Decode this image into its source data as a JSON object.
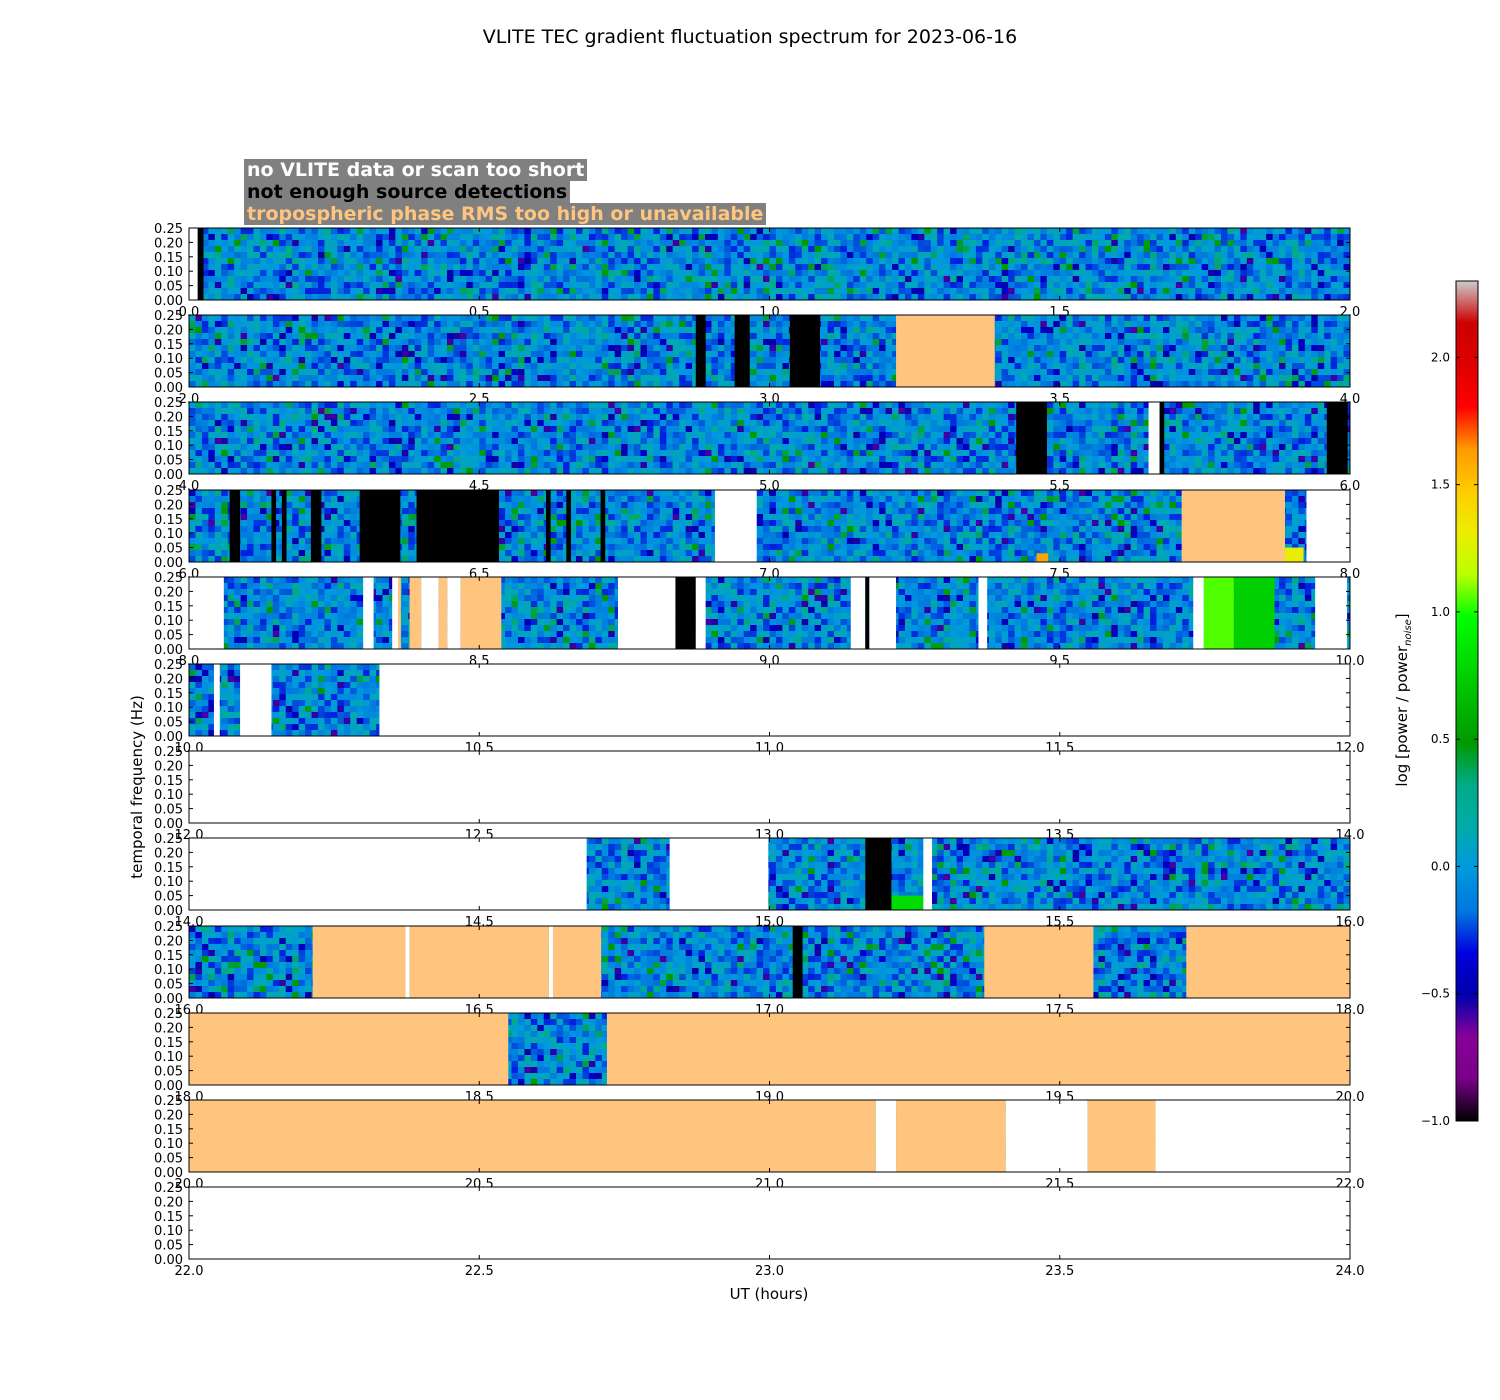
{
  "colors": {
    "no_data": "#ffffff",
    "few_detections": "#000000",
    "tropo": "#ffc57f",
    "legend_bg": "#808080",
    "legend_text_1": "#ffffff",
    "legend_text_2": "#000000",
    "legend_text_3": "#ffc57f"
  },
  "chart_data": {
    "type": "heatmap",
    "title": "VLITE TEC gradient fluctuation spectrum for 2023-06-16",
    "xlabel": "UT (hours)",
    "ylabel": "temporal frequency (Hz)",
    "colorbar": {
      "label_main": "log [power / power",
      "label_sub": "noise",
      "label_end": "]",
      "range": [
        -1.0,
        2.3
      ],
      "ticks": [
        "−1.0",
        "−0.5",
        "0.0",
        "0.5",
        "1.0",
        "1.5",
        "2.0"
      ],
      "tick_values": [
        -1.0,
        -0.5,
        0.0,
        0.5,
        1.0,
        1.5,
        2.0
      ],
      "colormap": "nipy_spectral"
    },
    "legend": [
      {
        "label": "no VLITE data or scan too short",
        "color": "#ffffff"
      },
      {
        "label": "not enough source detections",
        "color": "#000000"
      },
      {
        "label": "tropospheric phase RMS too high or unavailable",
        "color": "#ffc57f"
      }
    ],
    "y_range": [
      0,
      0.25
    ],
    "y_ticks": [
      "0.00",
      "0.05",
      "0.10",
      "0.15",
      "0.20",
      "0.25"
    ],
    "y_tick_values": [
      0,
      0.05,
      0.1,
      0.15,
      0.2,
      0.25
    ],
    "rows": [
      {
        "x_range": [
          0,
          2
        ],
        "x_ticks": [
          "0.0",
          "0.5",
          "1.0",
          "1.5",
          "2.0"
        ],
        "segments": [
          {
            "start": 0.0,
            "end": 0.015,
            "type": "nodata"
          },
          {
            "start": 0.015,
            "end": 0.025,
            "type": "few"
          }
        ]
      },
      {
        "x_range": [
          2,
          4
        ],
        "x_ticks": [
          "2.0",
          "2.5",
          "3.0",
          "3.5",
          "4.0"
        ],
        "segments": [
          {
            "start": 2.873,
            "end": 2.89,
            "type": "few"
          },
          {
            "start": 2.94,
            "end": 2.966,
            "type": "few"
          },
          {
            "start": 3.035,
            "end": 3.087,
            "type": "few"
          },
          {
            "start": 3.218,
            "end": 3.388,
            "type": "tropo"
          }
        ]
      },
      {
        "x_range": [
          4,
          6
        ],
        "x_ticks": [
          "4.0",
          "4.5",
          "5.0",
          "5.5",
          "6.0"
        ],
        "segments": [
          {
            "start": 5.425,
            "end": 5.478,
            "type": "few"
          },
          {
            "start": 5.653,
            "end": 5.672,
            "type": "nodata"
          },
          {
            "start": 5.672,
            "end": 5.68,
            "type": "few"
          },
          {
            "start": 5.96,
            "end": 5.996,
            "type": "few"
          }
        ]
      },
      {
        "x_range": [
          6,
          8
        ],
        "x_ticks": [
          "6.0",
          "6.5",
          "7.0",
          "7.5",
          "8.0"
        ],
        "segments": [
          {
            "start": 6.07,
            "end": 6.088,
            "type": "few"
          },
          {
            "start": 6.142,
            "end": 6.15,
            "type": "few"
          },
          {
            "start": 6.16,
            "end": 6.168,
            "type": "few"
          },
          {
            "start": 6.21,
            "end": 6.228,
            "type": "few"
          },
          {
            "start": 6.294,
            "end": 6.364,
            "type": "few"
          },
          {
            "start": 6.392,
            "end": 6.534,
            "type": "few"
          },
          {
            "start": 6.615,
            "end": 6.623,
            "type": "few"
          },
          {
            "start": 6.65,
            "end": 6.658,
            "type": "few"
          },
          {
            "start": 6.709,
            "end": 6.717,
            "type": "few"
          },
          {
            "start": 6.906,
            "end": 6.978,
            "type": "nodata"
          },
          {
            "start": 7.71,
            "end": 7.888,
            "type": "tropo"
          },
          {
            "start": 7.925,
            "end": 8.0,
            "type": "nodata"
          }
        ]
      },
      {
        "x_range": [
          8,
          10
        ],
        "x_ticks": [
          "8.0",
          "8.5",
          "9.0",
          "9.5",
          "10.0"
        ],
        "segments": [
          {
            "start": 8.0,
            "end": 8.06,
            "type": "nodata"
          },
          {
            "start": 8.3,
            "end": 8.318,
            "type": "nodata"
          },
          {
            "start": 8.35,
            "end": 8.36,
            "type": "nodata"
          },
          {
            "start": 8.36,
            "end": 8.365,
            "type": "tropo"
          },
          {
            "start": 8.38,
            "end": 8.4,
            "type": "tropo"
          },
          {
            "start": 8.4,
            "end": 8.43,
            "type": "nodata"
          },
          {
            "start": 8.43,
            "end": 8.445,
            "type": "tropo"
          },
          {
            "start": 8.445,
            "end": 8.468,
            "type": "nodata"
          },
          {
            "start": 8.468,
            "end": 8.538,
            "type": "tropo"
          },
          {
            "start": 8.739,
            "end": 8.838,
            "type": "nodata"
          },
          {
            "start": 8.838,
            "end": 8.873,
            "type": "few"
          },
          {
            "start": 8.873,
            "end": 8.89,
            "type": "nodata"
          },
          {
            "start": 9.14,
            "end": 9.165,
            "type": "nodata"
          },
          {
            "start": 9.165,
            "end": 9.172,
            "type": "few"
          },
          {
            "start": 9.172,
            "end": 9.218,
            "type": "nodata"
          },
          {
            "start": 9.36,
            "end": 9.375,
            "type": "nodata"
          },
          {
            "start": 9.73,
            "end": 9.748,
            "type": "nodata"
          },
          {
            "start": 9.94,
            "end": 9.995,
            "type": "nodata"
          }
        ]
      },
      {
        "x_range": [
          10,
          12
        ],
        "x_ticks": [
          "10.0",
          "10.5",
          "11.0",
          "11.5",
          "12.0"
        ],
        "segments": [
          {
            "start": 10.043,
            "end": 10.053,
            "type": "nodata"
          },
          {
            "start": 10.088,
            "end": 10.142,
            "type": "nodata"
          },
          {
            "start": 10.328,
            "end": 12.0,
            "type": "nodata"
          }
        ]
      },
      {
        "x_range": [
          12,
          14
        ],
        "x_ticks": [
          "12.0",
          "12.5",
          "13.0",
          "13.5",
          "14.0"
        ],
        "segments": [
          {
            "start": 12.0,
            "end": 14.0,
            "type": "nodata"
          }
        ]
      },
      {
        "x_range": [
          14,
          16
        ],
        "x_ticks": [
          "14.0",
          "14.5",
          "15.0",
          "15.5",
          "16.0"
        ],
        "segments": [
          {
            "start": 14.0,
            "end": 14.685,
            "type": "nodata"
          },
          {
            "start": 14.828,
            "end": 14.998,
            "type": "nodata"
          },
          {
            "start": 15.165,
            "end": 15.21,
            "type": "few"
          },
          {
            "start": 15.265,
            "end": 15.28,
            "type": "nodata"
          }
        ]
      },
      {
        "x_range": [
          16,
          18
        ],
        "x_ticks": [
          "16.0",
          "16.5",
          "17.0",
          "17.5",
          "18.0"
        ],
        "segments": [
          {
            "start": 16.213,
            "end": 16.373,
            "type": "tropo"
          },
          {
            "start": 16.373,
            "end": 16.38,
            "type": "nodata"
          },
          {
            "start": 16.38,
            "end": 16.62,
            "type": "tropo"
          },
          {
            "start": 16.62,
            "end": 16.627,
            "type": "nodata"
          },
          {
            "start": 16.627,
            "end": 16.71,
            "type": "tropo"
          },
          {
            "start": 17.04,
            "end": 17.057,
            "type": "few"
          },
          {
            "start": 17.37,
            "end": 17.558,
            "type": "tropo"
          },
          {
            "start": 17.718,
            "end": 18.0,
            "type": "tropo"
          }
        ]
      },
      {
        "x_range": [
          18,
          20
        ],
        "x_ticks": [
          "18.0",
          "18.5",
          "19.0",
          "19.5",
          "20.0"
        ],
        "segments": [
          {
            "start": 18.0,
            "end": 18.55,
            "type": "tropo"
          },
          {
            "start": 18.72,
            "end": 20.0,
            "type": "tropo"
          }
        ]
      },
      {
        "x_range": [
          20,
          22
        ],
        "x_ticks": [
          "20.0",
          "20.5",
          "21.0",
          "21.5",
          "22.0"
        ],
        "segments": [
          {
            "start": 20.0,
            "end": 21.183,
            "type": "tropo"
          },
          {
            "start": 21.183,
            "end": 21.218,
            "type": "nodata"
          },
          {
            "start": 21.218,
            "end": 21.407,
            "type": "tropo"
          },
          {
            "start": 21.407,
            "end": 21.548,
            "type": "nodata"
          },
          {
            "start": 21.548,
            "end": 21.665,
            "type": "tropo"
          },
          {
            "start": 21.665,
            "end": 22.0,
            "type": "nodata"
          }
        ]
      },
      {
        "x_range": [
          22,
          24
        ],
        "x_ticks": [
          "22.0",
          "22.5",
          "23.0",
          "23.5",
          "24.0"
        ],
        "segments": [
          {
            "start": 22.0,
            "end": 24.0,
            "type": "nodata"
          }
        ]
      }
    ],
    "hotspots": [
      {
        "row": 3,
        "start": 7.888,
        "end": 7.92,
        "f_low": 0.0,
        "f_high": 0.05,
        "value": 1.3
      },
      {
        "row": 3,
        "start": 7.46,
        "end": 7.48,
        "f_low": 0.0,
        "f_high": 0.03,
        "value": 1.6
      },
      {
        "row": 4,
        "start": 9.748,
        "end": 9.8,
        "f_low": 0.0,
        "f_high": 0.25,
        "value": 1.05
      },
      {
        "row": 4,
        "start": 9.8,
        "end": 9.87,
        "f_low": 0.0,
        "f_high": 0.25,
        "value": 0.75
      },
      {
        "row": 7,
        "start": 15.21,
        "end": 15.265,
        "f_low": 0.0,
        "f_high": 0.05,
        "value": 0.8
      }
    ]
  }
}
